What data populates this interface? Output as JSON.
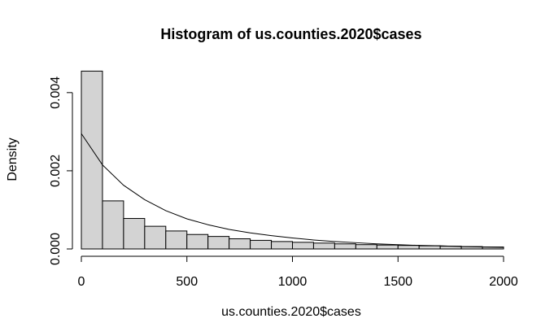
{
  "chart_data": {
    "type": "bar",
    "title": "Histogram of us.counties.2020$cases",
    "xlabel": "us.counties.2020$cases",
    "ylabel": "Density",
    "xlim": [
      0,
      2000
    ],
    "ylim": [
      0,
      0.0046
    ],
    "x_ticks": [
      0,
      500,
      1000,
      1500,
      2000
    ],
    "y_ticks": [
      0.0,
      0.002,
      0.004
    ],
    "x_tick_labels": [
      "0",
      "500",
      "1000",
      "1500",
      "2000"
    ],
    "y_tick_labels": [
      "0.000",
      "0.002",
      "0.004"
    ],
    "bin_width": 100,
    "bins": [
      {
        "start": 0,
        "end": 100,
        "value": 0.00455
      },
      {
        "start": 100,
        "end": 200,
        "value": 0.00123
      },
      {
        "start": 200,
        "end": 300,
        "value": 0.00078
      },
      {
        "start": 300,
        "end": 400,
        "value": 0.00058
      },
      {
        "start": 400,
        "end": 500,
        "value": 0.00046
      },
      {
        "start": 500,
        "end": 600,
        "value": 0.00037
      },
      {
        "start": 600,
        "end": 700,
        "value": 0.00032
      },
      {
        "start": 700,
        "end": 800,
        "value": 0.00026
      },
      {
        "start": 800,
        "end": 900,
        "value": 0.00022
      },
      {
        "start": 900,
        "end": 1000,
        "value": 0.00019
      },
      {
        "start": 1000,
        "end": 1100,
        "value": 0.00017
      },
      {
        "start": 1100,
        "end": 1200,
        "value": 0.00015
      },
      {
        "start": 1200,
        "end": 1300,
        "value": 0.00013
      },
      {
        "start": 1300,
        "end": 1400,
        "value": 0.00011
      },
      {
        "start": 1400,
        "end": 1500,
        "value": 0.0001
      },
      {
        "start": 1500,
        "end": 1600,
        "value": 9e-05
      },
      {
        "start": 1600,
        "end": 1700,
        "value": 8e-05
      },
      {
        "start": 1700,
        "end": 1800,
        "value": 7e-05
      },
      {
        "start": 1800,
        "end": 1900,
        "value": 6e-05
      },
      {
        "start": 1900,
        "end": 2000,
        "value": 5e-05
      }
    ],
    "density_curve": {
      "x": [
        0,
        100,
        200,
        300,
        400,
        500,
        600,
        700,
        800,
        900,
        1000,
        1100,
        1200,
        1300,
        1400,
        1500,
        1600,
        1700,
        1800,
        1900,
        2000
      ],
      "y": [
        0.00295,
        0.00215,
        0.00163,
        0.00126,
        0.00098,
        0.00077,
        0.00062,
        0.0005,
        0.00041,
        0.00034,
        0.00028,
        0.00023,
        0.00019,
        0.00016,
        0.00013,
        0.00011,
        9e-05,
        8e-05,
        6e-05,
        5e-05,
        4e-05
      ]
    },
    "colors": {
      "bar_fill": "#d3d3d3",
      "bar_stroke": "#000000",
      "line": "#000000",
      "axis": "#000000",
      "background": "#ffffff"
    },
    "grid": false,
    "legend": "none"
  }
}
